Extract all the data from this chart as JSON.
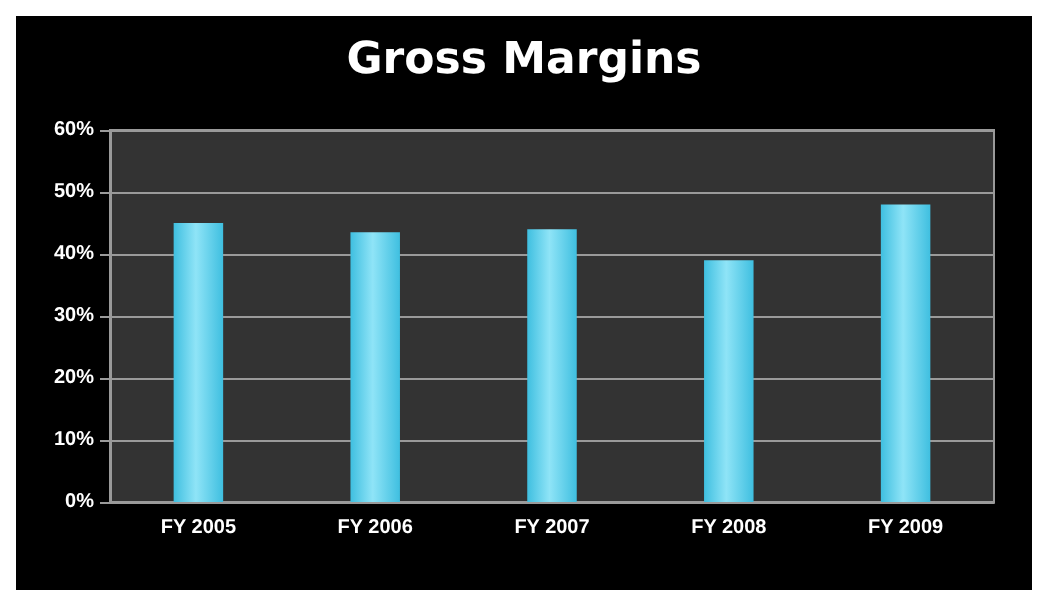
{
  "chart_data": {
    "type": "bar",
    "title": "Gross Margins",
    "categories": [
      "FY 2005",
      "FY 2006",
      "FY 2007",
      "FY 2008",
      "FY 2009"
    ],
    "values": [
      45,
      43.5,
      44,
      39,
      48
    ],
    "color": "#3fbfe0",
    "ylim": [
      0,
      60
    ],
    "yticks": [
      {
        "value": 0,
        "label": "0%"
      },
      {
        "value": 10,
        "label": "10%"
      },
      {
        "value": 20,
        "label": "20%"
      },
      {
        "value": 30,
        "label": "30%"
      },
      {
        "value": 40,
        "label": "40%"
      },
      {
        "value": 50,
        "label": "50%"
      },
      {
        "value": 60,
        "label": "60%"
      }
    ],
    "grid": "y"
  }
}
